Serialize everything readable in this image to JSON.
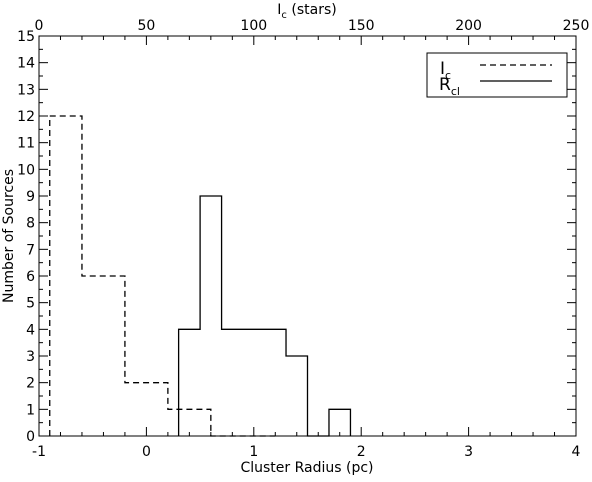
{
  "chart_data": {
    "type": "histogram",
    "xlabel": "Cluster Radius (pc)",
    "ylabel": "Number of Sources",
    "top_xlabel_main": "I",
    "top_xlabel_sub": "c",
    "top_xlabel_suffix": " (stars)",
    "xlim": [
      -1,
      4
    ],
    "ylim": [
      0,
      15
    ],
    "top_xlim": [
      0,
      250
    ],
    "x_ticks": [
      "-1",
      "0",
      "1",
      "2",
      "3",
      "4"
    ],
    "y_ticks": [
      "0",
      "1",
      "2",
      "3",
      "4",
      "5",
      "6",
      "7",
      "8",
      "9",
      "10",
      "11",
      "12",
      "13",
      "14",
      "15"
    ],
    "top_ticks": [
      "0",
      "50",
      "100",
      "150",
      "200",
      "250"
    ],
    "series": [
      {
        "name_main": "I",
        "name_sub": "c",
        "style": "dashed",
        "axis": "top",
        "bin_edges": [
          5,
          20,
          40,
          60,
          80,
          110
        ],
        "counts": [
          12,
          6,
          2,
          1,
          0
        ]
      },
      {
        "name_main": "R",
        "name_sub": "cl",
        "style": "solid",
        "axis": "bottom",
        "bin_edges": [
          0.3,
          0.5,
          0.7,
          1.0,
          1.3,
          1.5,
          1.7,
          1.9
        ],
        "counts": [
          4,
          9,
          4,
          4,
          3,
          0,
          1
        ]
      }
    ],
    "legend_position": "top-right",
    "color": "#000000"
  }
}
